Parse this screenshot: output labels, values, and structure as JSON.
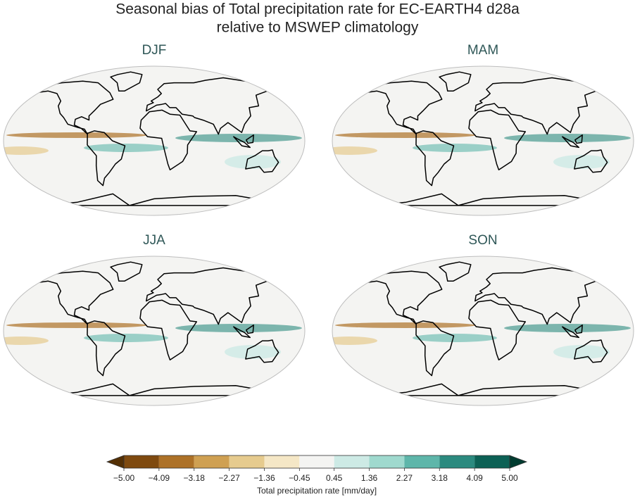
{
  "title": [
    "Seasonal bias of Total precipitation rate for EC-EARTH4 d28a",
    "relative to MSWEP climatology"
  ],
  "panels": [
    "DJF",
    "MAM",
    "JJA",
    "SON"
  ],
  "colorbar": {
    "label": "Total precipitation rate [mm/day]",
    "lim": [
      -5,
      5
    ],
    "ticks": [
      {
        "value": -5,
        "label": "−5.00"
      },
      {
        "value": -4.09,
        "label": "−4.09"
      },
      {
        "value": -3.18,
        "label": "−3.18"
      },
      {
        "value": -2.27,
        "label": "−2.27"
      },
      {
        "value": -1.36,
        "label": "−1.36"
      },
      {
        "value": -0.45,
        "label": "−0.45"
      },
      {
        "value": 0.45,
        "label": "0.45"
      },
      {
        "value": 1.36,
        "label": "1.36"
      },
      {
        "value": 2.27,
        "label": "2.27"
      },
      {
        "value": 3.18,
        "label": "3.18"
      },
      {
        "value": 4.09,
        "label": "4.09"
      },
      {
        "value": 5,
        "label": "5.00"
      }
    ],
    "colors": [
      "#7f4a0f",
      "#ad7127",
      "#cfa052",
      "#e6cb8e",
      "#f5e7c6",
      "#f4f4f2",
      "#cdeae5",
      "#9fd9ce",
      "#5eb6aa",
      "#2b8a7f",
      "#0c6155"
    ],
    "under_color": "#543005",
    "over_color": "#013c30"
  }
}
